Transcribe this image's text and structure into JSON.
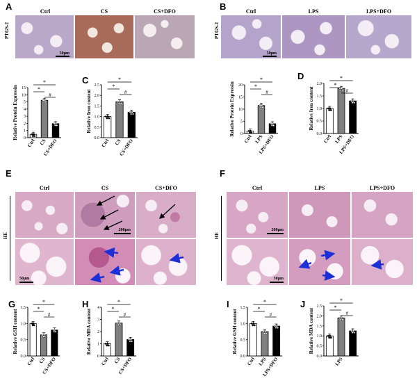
{
  "panels": {
    "A": {
      "label": "A",
      "cols": [
        "Ctrl",
        "CS",
        "CS+DFO"
      ],
      "row_label": "PTGS-2",
      "scale": "50μm"
    },
    "B": {
      "label": "B",
      "cols": [
        "Ctrl",
        "LPS",
        "LPS+DFO"
      ],
      "row_label": "PTGS-2",
      "scale": "50μm"
    },
    "E": {
      "label": "E",
      "cols": [
        "Ctrl",
        "CS",
        "CS+DFO"
      ],
      "row_label": "HE",
      "scale_top": "200μm",
      "scale_bottom": "50μm"
    },
    "F": {
      "label": "F",
      "cols": [
        "Ctrl",
        "LPS",
        "LPS+DFO"
      ],
      "row_label": "HE",
      "scale_top": "200μm",
      "scale_bottom": "50μm"
    }
  },
  "chart_data": [
    {
      "id": "cA",
      "panel": "",
      "type": "bar",
      "ylabel": "Relative Protein Expressin",
      "categories": [
        "Ctrl",
        "CS",
        "CS+DFO"
      ],
      "values": [
        1.0,
        11.2,
        4.2
      ],
      "ylim": [
        0,
        15
      ],
      "yticks": [
        "0",
        "1",
        "2",
        "3",
        "4",
        "5",
        "10",
        "15"
      ],
      "fills": [
        "#ffffff",
        "#808080",
        "#000000"
      ],
      "sig": [
        "*",
        "*",
        "#"
      ]
    },
    {
      "id": "cC",
      "panel": "C",
      "type": "bar",
      "ylabel": "Relative Iron content",
      "categories": [
        "Ctrl",
        "CS",
        "CS+DFO"
      ],
      "values": [
        1.0,
        1.7,
        1.2
      ],
      "ylim": [
        0,
        2.5
      ],
      "yticks": [
        "0.0",
        "0.5",
        "1.0",
        "1.5",
        "2.0",
        "2.5"
      ],
      "fills": [
        "#ffffff",
        "#808080",
        "#000000"
      ],
      "sig": [
        "*",
        "*",
        "#"
      ]
    },
    {
      "id": "cB",
      "panel": "",
      "type": "bar",
      "ylabel": "Relative Protein Expressin",
      "categories": [
        "Ctrl",
        "LPS",
        "LPS+DFO"
      ],
      "values": [
        1.0,
        11.5,
        4.0
      ],
      "ylim": [
        0,
        20
      ],
      "yticks": [
        "0",
        "5",
        "10",
        "15",
        "20"
      ],
      "fills": [
        "#ffffff",
        "#808080",
        "#000000"
      ],
      "sig": [
        "*",
        "*",
        "#"
      ]
    },
    {
      "id": "cD",
      "panel": "D",
      "type": "bar",
      "ylabel": "Relative Iron content",
      "categories": [
        "Ctrl",
        "LPS",
        "LPS+DFO"
      ],
      "values": [
        1.0,
        1.8,
        1.3
      ],
      "ylim": [
        0,
        2.0
      ],
      "yticks": [
        "0.0",
        "0.5",
        "1.0",
        "1.5",
        "2.0"
      ],
      "fills": [
        "#ffffff",
        "#808080",
        "#000000"
      ],
      "sig": [
        "*",
        "*",
        "#"
      ]
    },
    {
      "id": "cG",
      "panel": "G",
      "type": "bar",
      "ylabel": "Relative GSH content",
      "categories": [
        "Ctrl",
        "CS",
        "CS+DFO"
      ],
      "values": [
        1.0,
        0.65,
        0.8
      ],
      "ylim": [
        0,
        1.5
      ],
      "yticks": [
        "0.0",
        "0.5",
        "1.0",
        "1.5"
      ],
      "fills": [
        "#ffffff",
        "#808080",
        "#000000"
      ],
      "sig": [
        "*",
        "*",
        "#"
      ]
    },
    {
      "id": "cH",
      "panel": "H",
      "type": "bar",
      "ylabel": "Relative MDA content",
      "categories": [
        "Ctrl",
        "CS",
        "CS+DFO"
      ],
      "values": [
        1.0,
        2.7,
        1.35
      ],
      "ylim": [
        0,
        4
      ],
      "yticks": [
        "0",
        "1",
        "2",
        "3",
        "4"
      ],
      "fills": [
        "#ffffff",
        "#808080",
        "#000000"
      ],
      "sig": [
        "*",
        "*",
        "#"
      ]
    },
    {
      "id": "cI",
      "panel": "I",
      "type": "bar",
      "ylabel": "Relative GSH content",
      "categories": [
        "Ctrl",
        "LPS",
        "LPS+DFO"
      ],
      "values": [
        1.0,
        0.75,
        0.92
      ],
      "ylim": [
        0,
        1.5
      ],
      "yticks": [
        "0.0",
        "0.5",
        "1.0",
        "1.5"
      ],
      "fills": [
        "#ffffff",
        "#808080",
        "#000000"
      ],
      "sig": [
        "*",
        "*",
        "#"
      ]
    },
    {
      "id": "cJ",
      "panel": "J",
      "type": "bar",
      "ylabel": "Relative MDA content",
      "categories": [
        "",
        "LPS",
        ""
      ],
      "values": [
        1.0,
        1.9,
        1.25
      ],
      "ylim": [
        0,
        2.5
      ],
      "yticks": [
        "0.0",
        "0.5",
        "1.0",
        "1.5",
        "2.0",
        "2.5"
      ],
      "fills": [
        "#ffffff",
        "#808080",
        "#000000"
      ],
      "sig": [
        "*",
        "*",
        "#"
      ]
    }
  ]
}
